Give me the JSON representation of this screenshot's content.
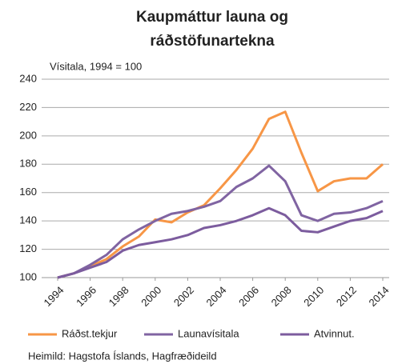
{
  "chart_data": {
    "type": "line",
    "title": [
      "Kaupmáttur launa og",
      "ráðstöfunartekna"
    ],
    "subtitle": "Vísitala, 1994 = 100",
    "source": "Heimild: Hagstofa Íslands, Hagfræðideild",
    "x": [
      1994,
      1995,
      1996,
      1997,
      1998,
      1999,
      2000,
      2001,
      2002,
      2003,
      2004,
      2005,
      2006,
      2007,
      2008,
      2009,
      2010,
      2011,
      2012,
      2013,
      2014
    ],
    "xlim": [
      1994,
      2014
    ],
    "xticks": [
      1994,
      1996,
      1998,
      2000,
      2002,
      2004,
      2006,
      2008,
      2010,
      2012,
      2014
    ],
    "ylim": [
      100,
      240
    ],
    "yticks": [
      100,
      120,
      140,
      160,
      180,
      200,
      220,
      240
    ],
    "grid": true,
    "legend": "bottom",
    "series": [
      {
        "name": "Ráðst.tekjur",
        "color": "#f79646",
        "values": [
          100,
          103,
          108,
          113,
          122,
          129,
          141,
          139,
          146,
          151,
          163,
          176,
          191,
          212,
          217,
          188,
          161,
          168,
          170,
          170,
          180
        ]
      },
      {
        "name": "Launavísitala",
        "color": "#8064a2",
        "values": [
          100,
          103,
          109,
          116,
          127,
          134,
          140,
          145,
          147,
          150,
          154,
          164,
          170,
          179,
          168,
          144,
          140,
          145,
          146,
          149,
          154
        ]
      },
      {
        "name": "Atvinnut.",
        "color": "#7c5c9e",
        "values": [
          100,
          103,
          107,
          111,
          119,
          123,
          125,
          127,
          130,
          135,
          137,
          140,
          144,
          149,
          144,
          133,
          132,
          136,
          140,
          142,
          147
        ]
      }
    ]
  }
}
